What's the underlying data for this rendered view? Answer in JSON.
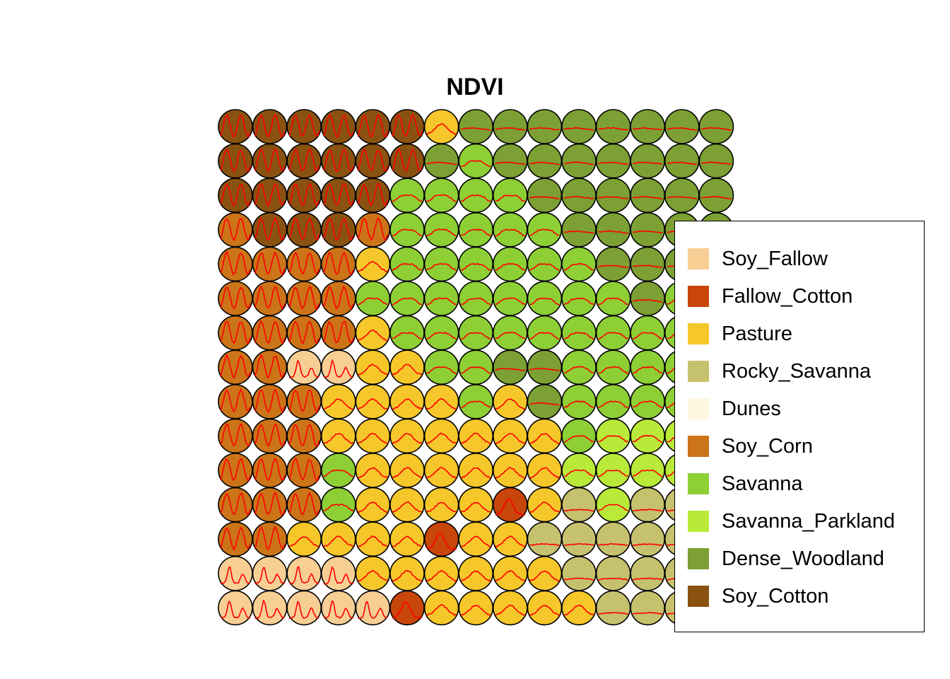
{
  "chart_data": {
    "type": "heatmap",
    "title": "NDVI",
    "grid_rows": 15,
    "grid_cols": 15,
    "legend": {
      "placement": "right",
      "entries": [
        {
          "name": "Soy_Fallow",
          "color": "#F7CF94"
        },
        {
          "name": "Fallow_Cotton",
          "color": "#C9460A"
        },
        {
          "name": "Pasture",
          "color": "#F6C72A"
        },
        {
          "name": "Rocky_Savanna",
          "color": "#C6C16D"
        },
        {
          "name": "Dunes",
          "color": "#FEF6E1"
        },
        {
          "name": "Soy_Corn",
          "color": "#CB7418"
        },
        {
          "name": "Savanna",
          "color": "#8DCF35"
        },
        {
          "name": "Savanna_Parkland",
          "color": "#B9EA3A"
        },
        {
          "name": "Dense_Woodland",
          "color": "#7CA033"
        },
        {
          "name": "Soy_Cotton",
          "color": "#8A5211"
        }
      ]
    },
    "neuron_grid_codes": [
      "SSSSSSPDDDDDDDD",
      "SSSSSSDVDDDDDDD",
      "SSSSSVVVVDDDDDD",
      "CSSSCVVVVVDDDDD",
      "CCCCPVVVVVVDDDD",
      "CCCCVVVVVVVVDVV",
      "CCCCPVVVVVVVVVV",
      "CCFFPPVVDDVVVVV",
      "CCCPPPPVPDVVVVV",
      "CCCPPPPPPPVLLLL",
      "CCCVPPPPPPLLLLL",
      "CCCVPPPPXPRLRRR",
      "CCPPPPXPPRRRRRR",
      "FFFFPPPPPPRRRRR",
      "FFFFFXPPPPPRRRR"
    ],
    "code_key": {
      "F": "Soy_Fallow",
      "X": "Fallow_Cotton",
      "P": "Pasture",
      "R": "Rocky_Savanna",
      "U": "Dunes",
      "C": "Soy_Corn",
      "V": "Savanna",
      "L": "Savanna_Parkland",
      "D": "Dense_Woodland",
      "S": "Soy_Cotton"
    },
    "pattern_color": "#FF0000"
  }
}
